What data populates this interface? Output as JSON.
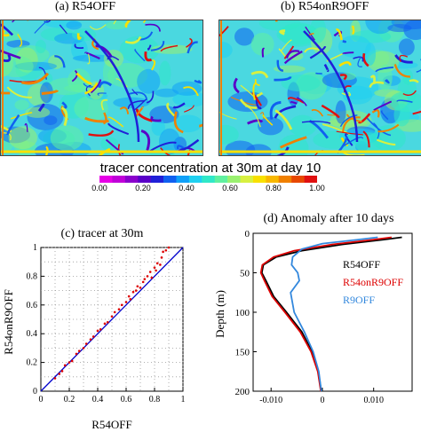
{
  "maps": [
    {
      "title": "(a) R54OFF"
    },
    {
      "title": "(b) R54onR9OFF"
    }
  ],
  "colorbar": {
    "title": "tracer concentration at 30m at day 10",
    "ticks": [
      "0.00",
      "0.20",
      "0.40",
      "0.60",
      "0.80",
      "1.00"
    ],
    "colors": [
      "#e600e6",
      "#c000d8",
      "#8a00cc",
      "#5a00c8",
      "#2020d8",
      "#1060f0",
      "#10a0f8",
      "#20d0f0",
      "#30e8c8",
      "#60f0a0",
      "#9af070",
      "#d8f040",
      "#f8e000",
      "#f8b800",
      "#f08000",
      "#e84800",
      "#e01010"
    ]
  },
  "chart_data": [
    {
      "type": "scatter",
      "title": "(c) tracer at 30m",
      "xlabel": "R54OFF",
      "ylabel": "R54onR9OFF",
      "xlim": [
        0,
        1
      ],
      "ylim": [
        0,
        1
      ],
      "xticks": [
        "0",
        "0.2",
        "0.4",
        "0.6",
        "0.8",
        "1"
      ],
      "yticks": [
        "0",
        "0.2",
        "0.4",
        "0.6",
        "0.8",
        "1"
      ],
      "grid": true,
      "reference_line": [
        [
          0,
          0
        ],
        [
          1,
          1
        ]
      ],
      "line_color": "#0000cc",
      "point_color": "#dd0000",
      "points": [
        [
          0.1,
          0.09
        ],
        [
          0.13,
          0.12
        ],
        [
          0.15,
          0.14
        ],
        [
          0.17,
          0.18
        ],
        [
          0.2,
          0.2
        ],
        [
          0.22,
          0.21
        ],
        [
          0.25,
          0.26
        ],
        [
          0.27,
          0.28
        ],
        [
          0.3,
          0.3
        ],
        [
          0.32,
          0.33
        ],
        [
          0.35,
          0.36
        ],
        [
          0.37,
          0.38
        ],
        [
          0.4,
          0.42
        ],
        [
          0.42,
          0.43
        ],
        [
          0.45,
          0.47
        ],
        [
          0.47,
          0.48
        ],
        [
          0.5,
          0.52
        ],
        [
          0.52,
          0.55
        ],
        [
          0.55,
          0.57
        ],
        [
          0.57,
          0.6
        ],
        [
          0.6,
          0.62
        ],
        [
          0.62,
          0.66
        ],
        [
          0.63,
          0.64
        ],
        [
          0.65,
          0.69
        ],
        [
          0.67,
          0.7
        ],
        [
          0.68,
          0.73
        ],
        [
          0.7,
          0.72
        ],
        [
          0.72,
          0.76
        ],
        [
          0.73,
          0.78
        ],
        [
          0.75,
          0.8
        ],
        [
          0.77,
          0.83
        ],
        [
          0.78,
          0.79
        ],
        [
          0.8,
          0.86
        ],
        [
          0.81,
          0.84
        ],
        [
          0.82,
          0.89
        ],
        [
          0.84,
          0.88
        ],
        [
          0.85,
          0.93
        ],
        [
          0.86,
          0.97
        ],
        [
          0.88,
          0.98
        ],
        [
          0.9,
          1.0
        ]
      ]
    },
    {
      "type": "line",
      "title": "(d) Anomaly after 10 days",
      "xlabel": "",
      "ylabel": "Depth (m)",
      "xlim": [
        -0.0135,
        0.0175
      ],
      "ylim": [
        200,
        0
      ],
      "xticks": [
        {
          "v": -0.01,
          "label": "-0.010"
        },
        {
          "v": 0,
          "label": "0"
        },
        {
          "v": 0.01,
          "label": "0.010"
        }
      ],
      "yticks": [
        "0",
        "50",
        "100",
        "150",
        "200"
      ],
      "legend_position": "right",
      "series": [
        {
          "name": "R54OFF",
          "color": "#000000",
          "points": [
            [
              0.0155,
              5
            ],
            [
              0.012,
              8
            ],
            [
              0.004,
              14
            ],
            [
              -0.004,
              22
            ],
            [
              -0.009,
              30
            ],
            [
              -0.0115,
              40
            ],
            [
              -0.0118,
              50
            ],
            [
              -0.011,
              60
            ],
            [
              -0.0095,
              80
            ],
            [
              -0.007,
              100
            ],
            [
              -0.004,
              125
            ],
            [
              -0.002,
              150
            ],
            [
              -0.0008,
              175
            ],
            [
              -0.0002,
              200
            ]
          ]
        },
        {
          "name": "R54onR9OFF",
          "color": "#dd0000",
          "points": [
            [
              0.0135,
              5
            ],
            [
              0.01,
              8
            ],
            [
              0.002,
              14
            ],
            [
              -0.0055,
              22
            ],
            [
              -0.0095,
              30
            ],
            [
              -0.0117,
              40
            ],
            [
              -0.012,
              50
            ],
            [
              -0.0113,
              60
            ],
            [
              -0.0098,
              80
            ],
            [
              -0.0073,
              100
            ],
            [
              -0.0043,
              125
            ],
            [
              -0.0022,
              150
            ],
            [
              -0.0009,
              175
            ],
            [
              -0.0003,
              200
            ]
          ]
        },
        {
          "name": "R9OFF",
          "color": "#3388dd",
          "points": [
            [
              0.0108,
              5
            ],
            [
              0.007,
              8
            ],
            [
              0.0,
              13
            ],
            [
              -0.004,
              20
            ],
            [
              -0.0058,
              30
            ],
            [
              -0.006,
              40
            ],
            [
              -0.0048,
              50
            ],
            [
              -0.0045,
              60
            ],
            [
              -0.0062,
              75
            ],
            [
              -0.0055,
              100
            ],
            [
              -0.0035,
              125
            ],
            [
              -0.0018,
              150
            ],
            [
              -0.0007,
              175
            ],
            [
              -0.0002,
              200
            ]
          ]
        }
      ]
    }
  ]
}
